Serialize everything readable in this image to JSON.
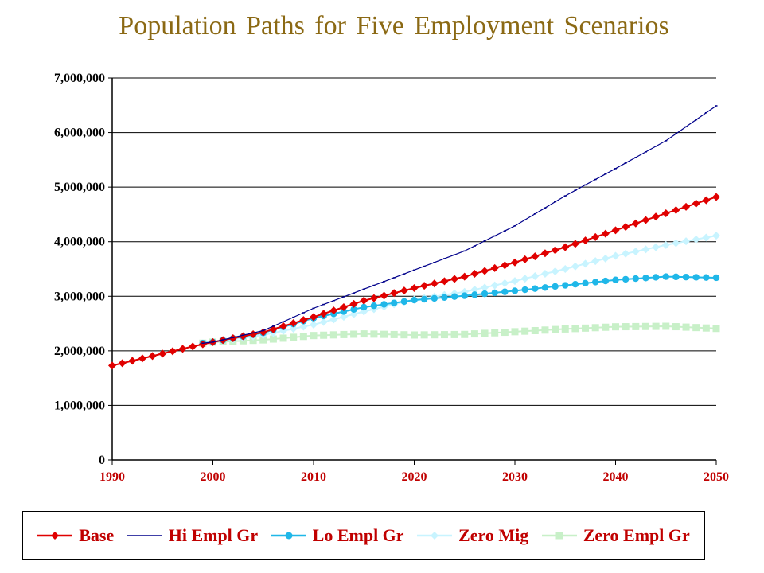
{
  "chart_data": {
    "type": "line",
    "title": "Population Paths for Five Employment Scenarios",
    "xlabel": "",
    "ylabel": "",
    "xlim": [
      1990,
      2050
    ],
    "ylim": [
      0,
      7000000
    ],
    "x_ticks": [
      "1990",
      "2000",
      "2010",
      "2020",
      "2030",
      "2040",
      "2050"
    ],
    "y_ticks": [
      "0",
      "1,000,000",
      "2,000,000",
      "3,000,000",
      "4,000,000",
      "5,000,000",
      "6,000,000",
      "7,000,000"
    ],
    "grid": "horizontal",
    "legend_position": "bottom",
    "series": [
      {
        "name": "Base",
        "color": "#e00000",
        "marker": "diamond",
        "x": [
          1990,
          1998,
          2000,
          2005,
          2010,
          2015,
          2020,
          2025,
          2030,
          2035,
          2040,
          2045,
          2050
        ],
        "values": [
          1730000,
          2080000,
          2160000,
          2340000,
          2620000,
          2920000,
          3150000,
          3360000,
          3620000,
          3900000,
          4210000,
          4520000,
          4820000
        ]
      },
      {
        "name": "Hi Empl Gr",
        "color": "#00008b",
        "marker": "line",
        "x": [
          1999,
          2000,
          2005,
          2010,
          2015,
          2020,
          2025,
          2030,
          2035,
          2040,
          2045,
          2050
        ],
        "values": [
          2140000,
          2160000,
          2370000,
          2780000,
          3130000,
          3480000,
          3830000,
          4290000,
          4840000,
          5340000,
          5850000,
          6490000
        ]
      },
      {
        "name": "Lo Empl Gr",
        "color": "#1fb7e8",
        "marker": "circle",
        "x": [
          1999,
          2000,
          2005,
          2010,
          2015,
          2020,
          2025,
          2030,
          2035,
          2040,
          2045,
          2050
        ],
        "values": [
          2140000,
          2160000,
          2330000,
          2600000,
          2800000,
          2930000,
          3010000,
          3100000,
          3200000,
          3300000,
          3360000,
          3340000
        ]
      },
      {
        "name": "Zero Mig",
        "color": "#c8f4ff",
        "marker": "diamond",
        "x": [
          1999,
          2000,
          2005,
          2010,
          2015,
          2020,
          2025,
          2030,
          2035,
          2040,
          2045,
          2050
        ],
        "values": [
          2140000,
          2160000,
          2290000,
          2480000,
          2720000,
          2940000,
          3080000,
          3280000,
          3500000,
          3740000,
          3940000,
          4110000
        ]
      },
      {
        "name": "Zero Empl Gr",
        "color": "#c8f0c8",
        "marker": "square",
        "x": [
          1999,
          2000,
          2005,
          2010,
          2015,
          2020,
          2025,
          2030,
          2035,
          2040,
          2045,
          2050
        ],
        "values": [
          2140000,
          2160000,
          2200000,
          2280000,
          2310000,
          2290000,
          2300000,
          2350000,
          2400000,
          2440000,
          2450000,
          2410000
        ]
      }
    ]
  }
}
